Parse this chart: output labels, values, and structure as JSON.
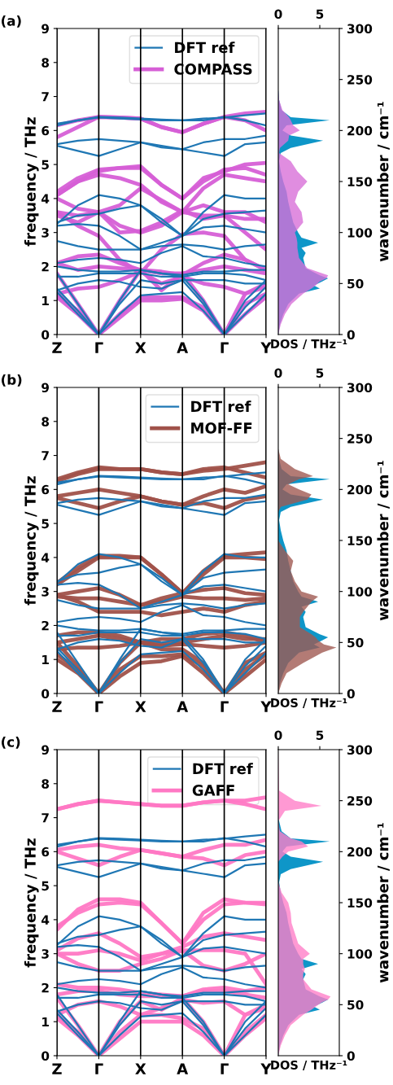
{
  "chart_data": [
    {
      "type": "line",
      "title": "(a)",
      "ylabel": "frequency / THz",
      "categories": [
        "Z",
        null,
        "Γ",
        null,
        "X",
        null,
        "A",
        null,
        "Γ",
        null,
        "Y"
      ],
      "ylim": [
        0,
        9
      ],
      "yticks": [
        0,
        1,
        2,
        3,
        4,
        5,
        6,
        7,
        8,
        9
      ],
      "legend": "top right",
      "grid": "x",
      "series": [
        {
          "name": "DFT ref",
          "color": "#1f77b4",
          "values": [
            1.25,
            0.6,
            0,
            0.6,
            1.15,
            1.2,
            1.25,
            0.7,
            0,
            0.6,
            1.2
          ]
        },
        {
          "color": "#1f77b4",
          "values": [
            1.35,
            0.7,
            0,
            0.9,
            1.6,
            1.5,
            1.6,
            0.9,
            0,
            0.8,
            1.4
          ]
        },
        {
          "color": "#1f77b4",
          "values": [
            1.8,
            0.9,
            0,
            1.0,
            1.9,
            1.8,
            1.7,
            1.0,
            0,
            1.0,
            1.6
          ]
        },
        {
          "color": "#1f77b4",
          "values": [
            1.3,
            1.5,
            1.6,
            1.55,
            1.4,
            1.35,
            1.6,
            1.6,
            1.6,
            1.5,
            1.5
          ]
        },
        {
          "color": "#1f77b4",
          "values": [
            1.7,
            1.7,
            1.8,
            1.8,
            1.8,
            1.7,
            1.7,
            1.8,
            1.8,
            1.75,
            1.6
          ]
        },
        {
          "color": "#1f77b4",
          "values": [
            2.0,
            1.9,
            1.85,
            1.85,
            1.9,
            1.8,
            1.75,
            1.85,
            1.85,
            1.9,
            1.9
          ]
        },
        {
          "color": "#1f77b4",
          "values": [
            2.1,
            2.2,
            2.25,
            2.2,
            2.1,
            2.4,
            2.6,
            2.3,
            2.25,
            2.1,
            2.0
          ]
        },
        {
          "color": "#1f77b4",
          "values": [
            2.75,
            2.6,
            2.5,
            2.5,
            2.5,
            2.6,
            2.65,
            2.6,
            2.5,
            2.6,
            2.65
          ]
        },
        {
          "color": "#1f77b4",
          "values": [
            3.2,
            3.25,
            3.2,
            2.9,
            2.5,
            2.7,
            2.9,
            3.15,
            3.2,
            3.1,
            3.0
          ]
        },
        {
          "color": "#1f77b4",
          "values": [
            3.3,
            3.5,
            3.55,
            3.7,
            3.8,
            3.4,
            2.9,
            3.4,
            3.55,
            3.6,
            3.65
          ]
        },
        {
          "color": "#1f77b4",
          "values": [
            3.25,
            3.8,
            4.1,
            4.0,
            3.8,
            3.3,
            2.9,
            3.6,
            4.1,
            4.0,
            4.0
          ]
        },
        {
          "color": "#1f77b4",
          "values": [
            5.6,
            5.7,
            5.75,
            5.7,
            5.65,
            5.55,
            5.45,
            5.65,
            5.75,
            5.75,
            5.85
          ]
        },
        {
          "color": "#1f77b4",
          "values": [
            5.55,
            5.4,
            5.25,
            5.45,
            5.65,
            5.5,
            5.45,
            5.35,
            5.25,
            5.6,
            5.65
          ]
        },
        {
          "color": "#1f77b4",
          "values": [
            6.15,
            6.3,
            6.38,
            6.35,
            6.33,
            6.3,
            6.3,
            6.35,
            6.38,
            6.45,
            6.5
          ]
        },
        {
          "color": "#1f77b4",
          "values": [
            6.2,
            6.3,
            6.4,
            6.38,
            6.35,
            6.32,
            6.3,
            6.3,
            6.4,
            6.3,
            6.15
          ]
        },
        {
          "name": "COMPASS",
          "color": "#d65fd6",
          "values": [
            1.1,
            0.6,
            0,
            0.5,
            1.0,
            1.0,
            1.05,
            0.7,
            0,
            0.6,
            1.1
          ]
        },
        {
          "color": "#d65fd6",
          "values": [
            1.2,
            0.7,
            0,
            0.6,
            1.1,
            1.1,
            1.1,
            0.8,
            0,
            0.9,
            1.2
          ]
        },
        {
          "color": "#d65fd6",
          "values": [
            1.8,
            0.9,
            0,
            1.0,
            1.9,
            1.3,
            1.8,
            1.0,
            0,
            1.2,
            1.4
          ]
        },
        {
          "color": "#d65fd6",
          "values": [
            1.2,
            1.35,
            1.4,
            1.6,
            1.85,
            1.5,
            1.7,
            1.5,
            1.4,
            1.2,
            1.5
          ]
        },
        {
          "color": "#d65fd6",
          "values": [
            2.1,
            1.9,
            2.0,
            1.95,
            1.9,
            1.8,
            1.8,
            1.9,
            2.0,
            1.9,
            1.8
          ]
        },
        {
          "color": "#d65fd6",
          "values": [
            2.1,
            2.3,
            2.35,
            2.1,
            1.9,
            1.85,
            1.75,
            2.1,
            2.35,
            2.2,
            1.9
          ]
        },
        {
          "color": "#d65fd6",
          "values": [
            3.6,
            3.2,
            2.9,
            2.2,
            1.8,
            2.5,
            2.95,
            3.0,
            2.9,
            2.2,
            1.9
          ]
        },
        {
          "color": "#d65fd6",
          "values": [
            3.5,
            3.3,
            3.6,
            3.2,
            3.0,
            3.2,
            3.6,
            3.5,
            3.5,
            3.0,
            2.5
          ]
        },
        {
          "color": "#d65fd6",
          "values": [
            3.6,
            3.5,
            3.6,
            3.0,
            3.05,
            3.3,
            3.65,
            3.4,
            3.5,
            3.4,
            3.4
          ]
        },
        {
          "color": "#d65fd6",
          "values": [
            4.0,
            3.7,
            3.6,
            3.8,
            4.3,
            3.95,
            3.6,
            3.8,
            3.6,
            3.6,
            3.3
          ]
        },
        {
          "color": "#d65fd6",
          "values": [
            4.1,
            4.5,
            4.7,
            4.6,
            4.4,
            3.9,
            3.6,
            4.3,
            4.7,
            4.6,
            4.5
          ]
        },
        {
          "color": "#d65fd6",
          "values": [
            4.2,
            4.6,
            4.85,
            4.9,
            4.95,
            4.4,
            4.0,
            4.5,
            4.85,
            4.9,
            4.7
          ]
        },
        {
          "color": "#d65fd6",
          "values": [
            4.1,
            4.5,
            4.8,
            4.9,
            4.9,
            4.4,
            4.0,
            4.6,
            4.8,
            5.0,
            5.05
          ]
        },
        {
          "color": "#d65fd6",
          "values": [
            5.8,
            6.1,
            6.4,
            6.38,
            6.35,
            6.1,
            5.95,
            6.2,
            6.4,
            6.3,
            6.0
          ]
        },
        {
          "color": "#d65fd6",
          "values": [
            6.15,
            6.3,
            6.4,
            6.38,
            6.35,
            6.1,
            5.95,
            6.2,
            6.4,
            6.5,
            6.55
          ]
        }
      ]
    },
    {
      "type": "area",
      "orientation": "horizontal",
      "xlabel": "DOS / THz⁻¹",
      "ylabel": "wavenumber / cm⁻¹",
      "xlim": [
        0,
        7.35
      ],
      "xticks": [
        0,
        5
      ],
      "ylim": [
        0,
        300
      ],
      "yticks": [
        0,
        50,
        100,
        150,
        200,
        250,
        300
      ],
      "x": [
        0,
        10,
        20,
        30,
        40,
        45,
        48,
        52,
        55,
        58,
        65,
        75,
        80,
        85,
        90,
        95,
        100,
        110,
        120,
        130,
        140,
        150,
        160,
        170,
        178,
        183,
        190,
        195,
        200,
        205,
        210,
        213,
        220,
        230,
        240,
        245,
        250,
        260,
        300
      ],
      "series": [
        {
          "color": "#0e96c8",
          "values": [
            0,
            0.2,
            0.6,
            1.2,
            2.5,
            5.0,
            4.3,
            5.3,
            6.0,
            5.0,
            3.3,
            3.0,
            3.3,
            2.8,
            4.8,
            2.8,
            2.4,
            1.8,
            1.5,
            1.2,
            1.0,
            0.6,
            0.3,
            0.1,
            0.3,
            1.5,
            5.4,
            1.5,
            0.5,
            1.0,
            6.2,
            1.5,
            0.4,
            0.1,
            0,
            0,
            0,
            0,
            0
          ]
        },
        {
          "color": "#d870d8",
          "values": [
            0,
            0.3,
            0.8,
            1.6,
            3.0,
            4.0,
            4.5,
            5.0,
            5.8,
            6.0,
            3.5,
            2.5,
            2.4,
            2.3,
            2.3,
            2.2,
            2.0,
            3.0,
            2.8,
            2.0,
            2.4,
            3.5,
            2.3,
            1.5,
            0.1,
            0.2,
            1.2,
            1.3,
            2.6,
            1.8,
            1.5,
            1.3,
            0.5,
            0.1,
            0,
            0,
            0,
            0,
            0
          ]
        }
      ]
    },
    {
      "type": "line",
      "title": "(b)",
      "ylabel": "frequency / THz",
      "categories": [
        "Z",
        null,
        "Γ",
        null,
        "X",
        null,
        "A",
        null,
        "Γ",
        null,
        "Y"
      ],
      "ylim": [
        0,
        9
      ],
      "yticks": [
        0,
        1,
        2,
        3,
        4,
        5,
        6,
        7,
        8,
        9
      ],
      "legend": "top right",
      "grid": "x",
      "series": [
        {
          "name": "DFT ref",
          "color": "#1f77b4",
          "values": [
            1.25,
            0.6,
            0,
            0.6,
            1.15,
            1.2,
            1.25,
            0.7,
            0,
            0.6,
            1.2
          ]
        },
        {
          "color": "#1f77b4",
          "values": [
            1.35,
            0.7,
            0,
            0.9,
            1.6,
            1.5,
            1.6,
            0.9,
            0,
            0.8,
            1.4
          ]
        },
        {
          "color": "#1f77b4",
          "values": [
            1.8,
            0.9,
            0,
            1.0,
            1.9,
            1.8,
            1.7,
            1.0,
            0,
            1.0,
            1.6
          ]
        },
        {
          "color": "#1f77b4",
          "values": [
            1.3,
            1.5,
            1.6,
            1.55,
            1.4,
            1.35,
            1.6,
            1.6,
            1.6,
            1.5,
            1.5
          ]
        },
        {
          "color": "#1f77b4",
          "values": [
            1.7,
            1.7,
            1.8,
            1.8,
            1.8,
            1.7,
            1.7,
            1.8,
            1.8,
            1.75,
            1.6
          ]
        },
        {
          "color": "#1f77b4",
          "values": [
            2.0,
            1.9,
            1.85,
            1.85,
            1.9,
            1.8,
            1.75,
            1.85,
            1.85,
            1.9,
            1.9
          ]
        },
        {
          "color": "#1f77b4",
          "values": [
            2.1,
            2.2,
            2.25,
            2.2,
            2.1,
            2.4,
            2.6,
            2.3,
            2.25,
            2.1,
            2.0
          ]
        },
        {
          "color": "#1f77b4",
          "values": [
            2.75,
            2.6,
            2.5,
            2.5,
            2.5,
            2.6,
            2.65,
            2.6,
            2.5,
            2.6,
            2.65
          ]
        },
        {
          "color": "#1f77b4",
          "values": [
            3.2,
            3.25,
            3.2,
            2.9,
            2.5,
            2.7,
            2.9,
            3.15,
            3.2,
            3.1,
            3.0
          ]
        },
        {
          "color": "#1f77b4",
          "values": [
            3.3,
            3.5,
            3.55,
            3.7,
            3.8,
            3.4,
            2.9,
            3.4,
            3.55,
            3.6,
            3.65
          ]
        },
        {
          "color": "#1f77b4",
          "values": [
            3.25,
            3.8,
            4.1,
            4.0,
            3.8,
            3.3,
            2.9,
            3.6,
            4.1,
            4.0,
            4.0
          ]
        },
        {
          "color": "#1f77b4",
          "values": [
            5.6,
            5.7,
            5.75,
            5.7,
            5.65,
            5.55,
            5.45,
            5.65,
            5.75,
            5.75,
            5.85
          ]
        },
        {
          "color": "#1f77b4",
          "values": [
            5.55,
            5.4,
            5.25,
            5.45,
            5.65,
            5.5,
            5.45,
            5.35,
            5.25,
            5.6,
            5.65
          ]
        },
        {
          "color": "#1f77b4",
          "values": [
            6.15,
            6.3,
            6.38,
            6.35,
            6.33,
            6.3,
            6.3,
            6.35,
            6.38,
            6.45,
            6.5
          ]
        },
        {
          "color": "#1f77b4",
          "values": [
            6.2,
            6.3,
            6.4,
            6.38,
            6.35,
            6.32,
            6.3,
            6.3,
            6.4,
            6.3,
            6.15
          ]
        },
        {
          "name": "MOF-FF",
          "color": "#a0524a",
          "values": [
            1.0,
            0.6,
            0,
            0.5,
            0.9,
            0.95,
            1.1,
            0.6,
            0,
            0.5,
            1.0
          ]
        },
        {
          "color": "#a0524a",
          "values": [
            1.15,
            0.7,
            0,
            0.7,
            1.1,
            1.1,
            1.15,
            0.8,
            0,
            0.7,
            1.15
          ]
        },
        {
          "color": "#a0524a",
          "values": [
            1.5,
            0.8,
            0,
            0.9,
            1.5,
            1.3,
            1.3,
            0.9,
            0,
            0.9,
            1.2
          ]
        },
        {
          "color": "#a0524a",
          "values": [
            1.3,
            1.35,
            1.35,
            1.4,
            1.5,
            1.4,
            1.45,
            1.4,
            1.35,
            1.4,
            1.5
          ]
        },
        {
          "color": "#a0524a",
          "values": [
            1.5,
            1.6,
            1.7,
            1.6,
            1.5,
            1.45,
            1.5,
            1.6,
            1.7,
            1.6,
            1.6
          ]
        },
        {
          "color": "#a0524a",
          "values": [
            1.7,
            1.8,
            1.8,
            1.7,
            1.5,
            1.6,
            1.6,
            1.75,
            1.8,
            1.7,
            1.5
          ]
        },
        {
          "color": "#a0524a",
          "values": [
            2.9,
            2.7,
            2.4,
            2.4,
            2.4,
            2.3,
            2.4,
            2.5,
            2.4,
            2.6,
            2.7
          ]
        },
        {
          "color": "#a0524a",
          "values": [
            2.85,
            2.8,
            2.8,
            2.7,
            2.6,
            2.7,
            2.85,
            2.8,
            2.8,
            2.75,
            2.8
          ]
        },
        {
          "color": "#a0524a",
          "values": [
            2.9,
            3.0,
            3.1,
            2.9,
            2.6,
            2.8,
            2.95,
            3.05,
            3.1,
            2.95,
            2.9
          ]
        },
        {
          "color": "#a0524a",
          "values": [
            3.2,
            3.6,
            4.0,
            4.0,
            4.0,
            3.5,
            2.95,
            3.5,
            4.0,
            4.0,
            3.95
          ]
        },
        {
          "color": "#a0524a",
          "values": [
            3.25,
            3.7,
            4.05,
            4.05,
            4.0,
            3.5,
            2.95,
            3.6,
            4.05,
            4.1,
            4.15
          ]
        },
        {
          "color": "#a0524a",
          "values": [
            5.75,
            5.6,
            5.45,
            5.65,
            5.8,
            5.65,
            5.55,
            5.6,
            5.45,
            5.7,
            5.8
          ]
        },
        {
          "color": "#a0524a",
          "values": [
            5.8,
            5.9,
            6.0,
            5.9,
            5.8,
            5.65,
            5.55,
            5.8,
            6.0,
            5.9,
            6.1
          ]
        },
        {
          "color": "#a0524a",
          "values": [
            6.25,
            6.45,
            6.6,
            6.6,
            6.6,
            6.5,
            6.45,
            6.55,
            6.6,
            6.7,
            6.8
          ]
        },
        {
          "color": "#a0524a",
          "values": [
            6.3,
            6.5,
            6.65,
            6.6,
            6.6,
            6.5,
            6.45,
            6.6,
            6.65,
            6.5,
            6.35
          ]
        }
      ]
    },
    {
      "type": "area",
      "orientation": "horizontal",
      "xlabel": "DOS / THz⁻¹",
      "ylabel": "wavenumber / cm⁻¹",
      "xlim": [
        0,
        7.35
      ],
      "xticks": [
        0,
        5
      ],
      "ylim": [
        0,
        300
      ],
      "yticks": [
        0,
        50,
        100,
        150,
        200,
        250,
        300
      ],
      "x": [
        0,
        10,
        20,
        30,
        40,
        45,
        48,
        52,
        55,
        58,
        65,
        75,
        80,
        85,
        90,
        95,
        100,
        110,
        120,
        130,
        140,
        150,
        160,
        170,
        178,
        183,
        190,
        195,
        200,
        205,
        210,
        213,
        220,
        230,
        240,
        245,
        250,
        260,
        300
      ],
      "series": [
        {
          "color": "#0e96c8",
          "values": [
            0,
            0.2,
            0.6,
            1.2,
            2.5,
            5.0,
            4.3,
            5.3,
            6.0,
            5.0,
            3.3,
            3.0,
            3.3,
            2.8,
            4.8,
            2.8,
            2.4,
            1.8,
            1.5,
            1.2,
            1.0,
            0.6,
            0.3,
            0.1,
            0.3,
            1.5,
            5.4,
            1.5,
            0.5,
            1.0,
            6.2,
            1.5,
            0.4,
            0.1,
            0,
            0,
            0,
            0,
            0
          ]
        },
        {
          "color": "#a05a52",
          "values": [
            0,
            0.4,
            1.0,
            3.0,
            5.3,
            7.0,
            5.5,
            4.8,
            4.5,
            4.0,
            2.6,
            2.6,
            3.0,
            3.5,
            4.0,
            4.8,
            2.8,
            2.0,
            1.5,
            1.8,
            0.8,
            0,
            0,
            0,
            0,
            0.3,
            3.5,
            4.0,
            2.5,
            1.2,
            2.5,
            4.2,
            2.0,
            0.3,
            0,
            0,
            0,
            0,
            0
          ]
        }
      ]
    },
    {
      "type": "line",
      "title": "(c)",
      "ylabel": "frequency / THz",
      "categories": [
        "Z",
        null,
        "Γ",
        null,
        "X",
        null,
        "A",
        null,
        "Γ",
        null,
        "Y"
      ],
      "ylim": [
        0,
        9
      ],
      "yticks": [
        0,
        1,
        2,
        3,
        4,
        5,
        6,
        7,
        8,
        9
      ],
      "legend": "top right",
      "grid": "x",
      "series": [
        {
          "name": "DFT ref",
          "color": "#1f77b4",
          "values": [
            1.25,
            0.6,
            0,
            0.6,
            1.15,
            1.2,
            1.25,
            0.7,
            0,
            0.6,
            1.2
          ]
        },
        {
          "color": "#1f77b4",
          "values": [
            1.35,
            0.7,
            0,
            0.9,
            1.6,
            1.5,
            1.6,
            0.9,
            0,
            0.8,
            1.4
          ]
        },
        {
          "color": "#1f77b4",
          "values": [
            1.8,
            0.9,
            0,
            1.0,
            1.9,
            1.8,
            1.7,
            1.0,
            0,
            1.0,
            1.6
          ]
        },
        {
          "color": "#1f77b4",
          "values": [
            1.3,
            1.5,
            1.6,
            1.55,
            1.4,
            1.35,
            1.6,
            1.6,
            1.6,
            1.5,
            1.5
          ]
        },
        {
          "color": "#1f77b4",
          "values": [
            1.7,
            1.7,
            1.8,
            1.8,
            1.8,
            1.7,
            1.7,
            1.8,
            1.8,
            1.75,
            1.6
          ]
        },
        {
          "color": "#1f77b4",
          "values": [
            2.0,
            1.9,
            1.85,
            1.85,
            1.9,
            1.8,
            1.75,
            1.85,
            1.85,
            1.9,
            1.9
          ]
        },
        {
          "color": "#1f77b4",
          "values": [
            2.1,
            2.2,
            2.25,
            2.2,
            2.1,
            2.4,
            2.6,
            2.3,
            2.25,
            2.1,
            2.0
          ]
        },
        {
          "color": "#1f77b4",
          "values": [
            2.75,
            2.6,
            2.5,
            2.5,
            2.5,
            2.6,
            2.65,
            2.6,
            2.5,
            2.6,
            2.65
          ]
        },
        {
          "color": "#1f77b4",
          "values": [
            3.2,
            3.25,
            3.2,
            2.9,
            2.5,
            2.7,
            2.9,
            3.15,
            3.2,
            3.1,
            3.0
          ]
        },
        {
          "color": "#1f77b4",
          "values": [
            3.3,
            3.5,
            3.55,
            3.7,
            3.8,
            3.4,
            2.9,
            3.4,
            3.55,
            3.6,
            3.65
          ]
        },
        {
          "color": "#1f77b4",
          "values": [
            3.25,
            3.8,
            4.1,
            4.0,
            3.8,
            3.3,
            2.9,
            3.6,
            4.1,
            4.0,
            4.0
          ]
        },
        {
          "color": "#1f77b4",
          "values": [
            5.6,
            5.7,
            5.75,
            5.7,
            5.65,
            5.55,
            5.45,
            5.65,
            5.75,
            5.75,
            5.85
          ]
        },
        {
          "color": "#1f77b4",
          "values": [
            5.55,
            5.4,
            5.25,
            5.45,
            5.65,
            5.5,
            5.45,
            5.35,
            5.25,
            5.6,
            5.65
          ]
        },
        {
          "color": "#1f77b4",
          "values": [
            6.15,
            6.3,
            6.38,
            6.35,
            6.33,
            6.3,
            6.3,
            6.35,
            6.38,
            6.45,
            6.5
          ]
        },
        {
          "color": "#1f77b4",
          "values": [
            6.2,
            6.3,
            6.4,
            6.38,
            6.35,
            6.32,
            6.3,
            6.3,
            6.4,
            6.3,
            6.15
          ]
        },
        {
          "name": "GAFF",
          "color": "#ff78c4",
          "values": [
            1.1,
            0.6,
            0,
            0.5,
            1.0,
            1.0,
            1.0,
            0.6,
            0,
            0.6,
            1.1
          ]
        },
        {
          "color": "#ff78c4",
          "values": [
            1.2,
            0.7,
            0,
            0.7,
            1.2,
            1.2,
            1.1,
            0.8,
            0,
            0.7,
            1.2
          ]
        },
        {
          "color": "#ff78c4",
          "values": [
            1.7,
            0.9,
            0,
            1.0,
            1.6,
            1.35,
            1.7,
            1.0,
            0,
            1.2,
            1.4
          ]
        },
        {
          "color": "#ff78c4",
          "values": [
            1.2,
            1.5,
            1.6,
            1.45,
            1.2,
            1.4,
            1.65,
            1.55,
            1.6,
            1.2,
            1.5
          ]
        },
        {
          "color": "#ff78c4",
          "values": [
            1.8,
            1.9,
            1.9,
            1.8,
            1.75,
            1.75,
            1.75,
            1.9,
            1.9,
            1.8,
            1.7
          ]
        },
        {
          "color": "#ff78c4",
          "values": [
            2.1,
            2.0,
            2.0,
            1.95,
            1.85,
            1.8,
            1.75,
            1.95,
            2.0,
            1.9,
            2.0
          ]
        },
        {
          "color": "#ff78c4",
          "values": [
            3.0,
            2.7,
            2.5,
            2.5,
            2.7,
            2.85,
            3.1,
            2.65,
            2.5,
            2.7,
            3.0
          ]
        },
        {
          "color": "#ff78c4",
          "values": [
            3.0,
            3.0,
            3.1,
            3.0,
            2.8,
            3.0,
            3.1,
            3.1,
            3.1,
            3.0,
            2.1
          ]
        },
        {
          "color": "#ff78c4",
          "values": [
            3.1,
            3.45,
            3.6,
            3.3,
            2.9,
            3.0,
            3.2,
            3.5,
            3.6,
            3.5,
            3.4
          ]
        },
        {
          "color": "#ff78c4",
          "values": [
            3.8,
            4.2,
            4.45,
            4.5,
            4.45,
            3.9,
            3.3,
            4.0,
            4.45,
            4.5,
            4.5
          ]
        },
        {
          "color": "#ff78c4",
          "values": [
            3.7,
            4.3,
            4.6,
            4.6,
            4.5,
            3.9,
            3.3,
            4.2,
            4.6,
            4.5,
            4.45
          ]
        },
        {
          "color": "#ff78c4",
          "values": [
            6.0,
            5.8,
            5.6,
            5.85,
            6.05,
            5.95,
            5.85,
            5.8,
            5.6,
            5.9,
            6.0
          ]
        },
        {
          "color": "#ff78c4",
          "values": [
            6.05,
            6.15,
            6.2,
            6.1,
            6.05,
            5.95,
            5.85,
            6.05,
            6.2,
            6.2,
            6.35
          ]
        },
        {
          "color": "#ff78c4",
          "values": [
            7.25,
            7.4,
            7.5,
            7.45,
            7.4,
            7.35,
            7.35,
            7.45,
            7.5,
            7.5,
            7.6
          ]
        },
        {
          "color": "#ff78c4",
          "values": [
            7.25,
            7.4,
            7.5,
            7.45,
            7.4,
            7.35,
            7.35,
            7.45,
            7.5,
            7.4,
            7.25
          ]
        }
      ]
    },
    {
      "type": "area",
      "orientation": "horizontal",
      "xlabel": "DOS / THz⁻¹",
      "ylabel": "wavenumber / cm⁻¹",
      "xlim": [
        0,
        7.35
      ],
      "xticks": [
        0,
        5
      ],
      "ylim": [
        0,
        300
      ],
      "yticks": [
        0,
        50,
        100,
        150,
        200,
        250,
        300
      ],
      "x": [
        0,
        10,
        20,
        30,
        40,
        45,
        48,
        52,
        55,
        58,
        65,
        75,
        80,
        85,
        90,
        95,
        100,
        110,
        120,
        130,
        140,
        150,
        160,
        170,
        178,
        183,
        190,
        195,
        200,
        205,
        210,
        213,
        220,
        230,
        240,
        245,
        250,
        260,
        300
      ],
      "series": [
        {
          "color": "#0e96c8",
          "values": [
            0,
            0.2,
            0.6,
            1.2,
            2.5,
            5.0,
            4.3,
            5.3,
            6.0,
            5.0,
            3.3,
            3.0,
            3.3,
            2.8,
            4.8,
            2.8,
            2.4,
            1.8,
            1.5,
            1.2,
            1.0,
            0.6,
            0.3,
            0.1,
            0.3,
            1.5,
            5.4,
            1.5,
            0.5,
            1.0,
            6.2,
            1.5,
            0.4,
            0.1,
            0,
            0,
            0,
            0,
            0
          ]
        },
        {
          "color": "#ff80c8",
          "values": [
            0,
            0.3,
            0.8,
            1.5,
            3.0,
            4.0,
            4.5,
            5.2,
            6.0,
            6.3,
            4.0,
            3.0,
            3.0,
            3.2,
            3.0,
            3.0,
            3.8,
            2.4,
            2.0,
            1.6,
            1.5,
            1.2,
            0.4,
            0,
            0,
            0,
            0,
            0.5,
            1.2,
            3.6,
            2.8,
            1.5,
            0.2,
            0,
            0.8,
            5.2,
            2.0,
            0.1,
            0
          ]
        }
      ]
    }
  ]
}
